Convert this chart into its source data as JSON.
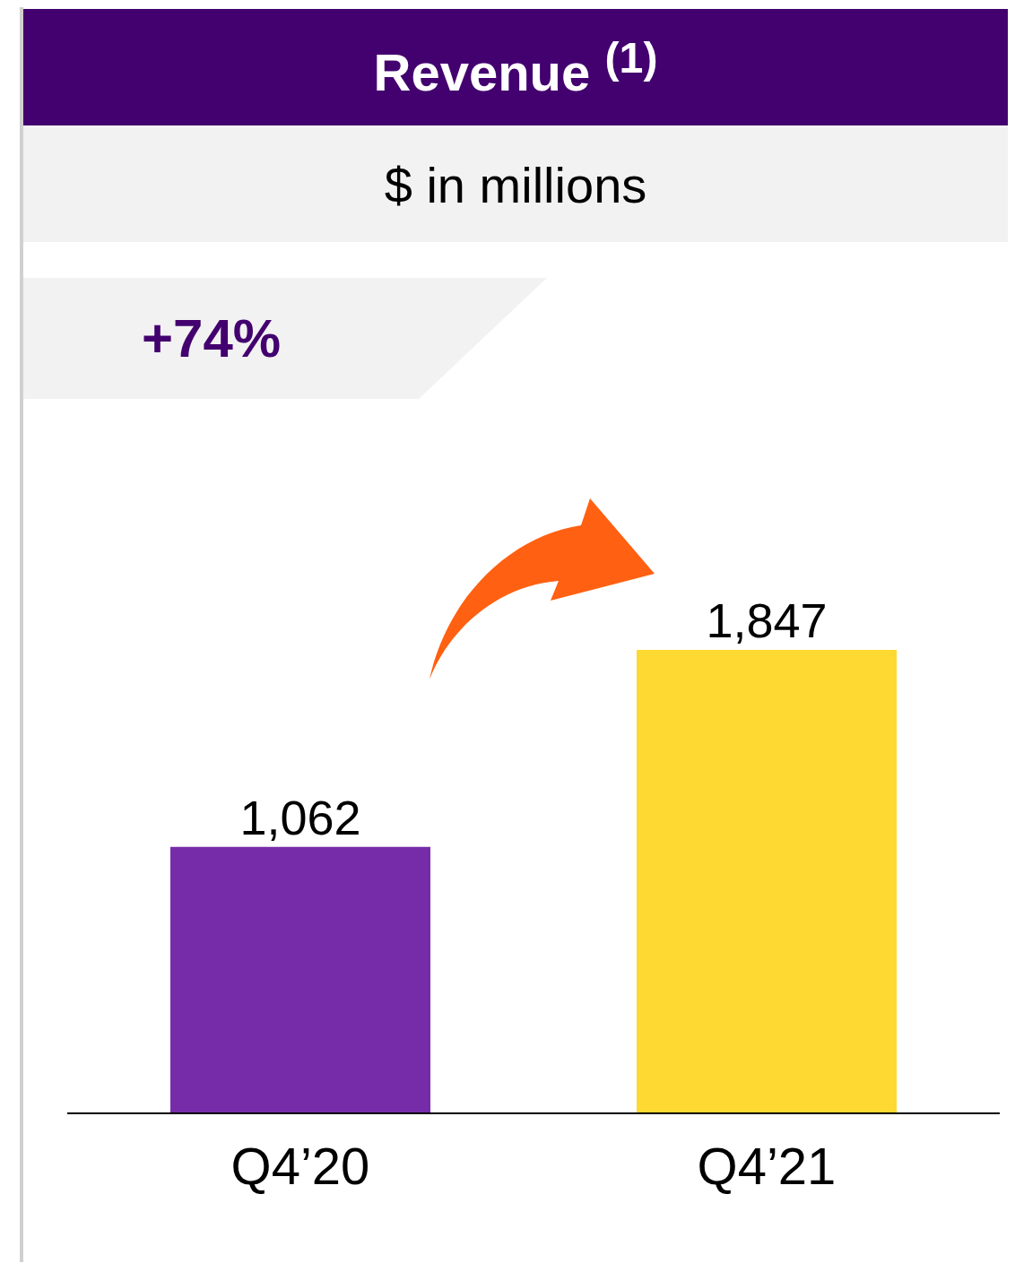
{
  "chart_data": {
    "type": "bar",
    "title": "Revenue $^{(1)}$",
    "subtitle": "$ in millions",
    "annotations": [
      "+74%"
    ],
    "categories": [
      "Q4’20",
      "Q4’21"
    ],
    "values": [
      1062,
      1847
    ],
    "colors": [
      "#762ca8",
      "#fed931"
    ],
    "value_labels": [
      "1,062",
      "1,847"
    ],
    "tick_labels": "x",
    "legend": false,
    "grid": false
  }
}
